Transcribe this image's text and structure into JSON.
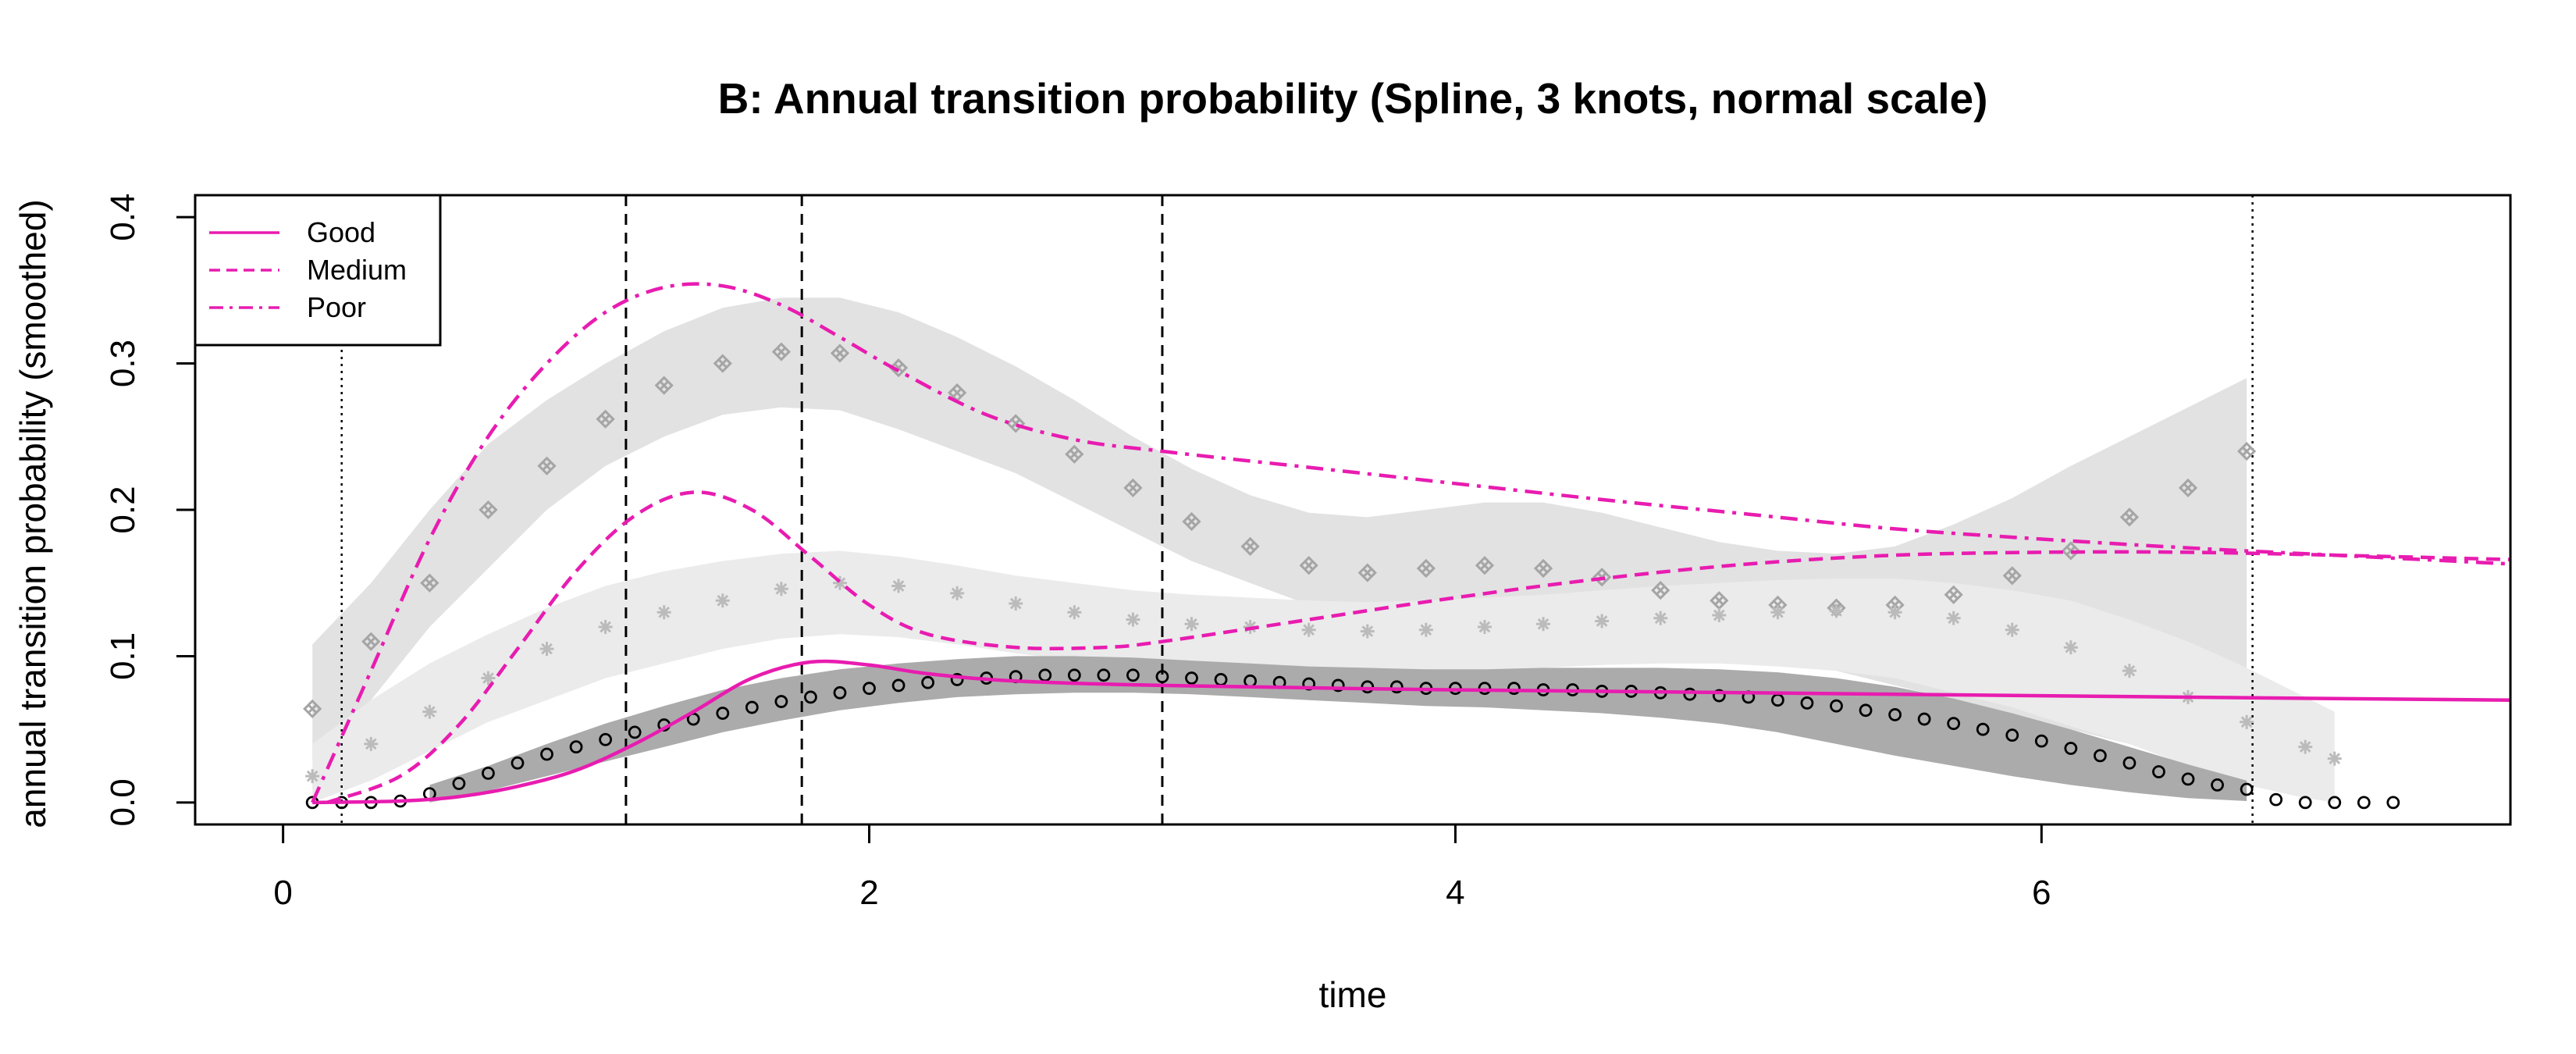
{
  "chart_data": {
    "type": "line",
    "title": "B: Annual transition probability (Spline, 3 knots, normal scale)",
    "xlabel": "time",
    "ylabel": "annual transition probability (smoothed)",
    "xlim": [
      -0.3,
      7.6
    ],
    "ylim": [
      -0.015,
      0.415
    ],
    "xticks": [
      0,
      2,
      4,
      6
    ],
    "xtick_labels": [
      "0",
      "2",
      "4",
      "6"
    ],
    "yticks": [
      0.0,
      0.1,
      0.2,
      0.3,
      0.4
    ],
    "ytick_labels": [
      "0.0",
      "0.1",
      "0.2",
      "0.3",
      "0.4"
    ],
    "grid": false,
    "legend_position": "top-left",
    "vlines_dashed": [
      1.17,
      1.77,
      3.0
    ],
    "vlines_dotted": [
      0.2,
      6.72
    ],
    "colors": {
      "model": "#E81CB0",
      "poor_obs": "#A5A5A5",
      "medium_obs": "#BBBBBB",
      "good_obs": "#000000",
      "band_poor": "#E2E2E2",
      "band_medium": "#EBEBEB",
      "band_good": "#ABABAB"
    },
    "series": [
      {
        "name": "Good",
        "line": "solid",
        "x": [
          0.1,
          0.4,
          0.6,
          0.8,
          1.0,
          1.2,
          1.4,
          1.6,
          1.8,
          2.0,
          2.2,
          2.5,
          3.0,
          4.0,
          5.0,
          6.0,
          7.0,
          7.6
        ],
        "y": [
          0.0,
          0.001,
          0.004,
          0.011,
          0.022,
          0.04,
          0.062,
          0.085,
          0.096,
          0.094,
          0.088,
          0.083,
          0.08,
          0.077,
          0.075,
          0.073,
          0.071,
          0.07
        ]
      },
      {
        "name": "Medium",
        "line": "dashed",
        "x": [
          0.15,
          0.4,
          0.6,
          0.8,
          1.0,
          1.2,
          1.4,
          1.6,
          1.8,
          2.0,
          2.2,
          2.5,
          2.8,
          3.0,
          3.5,
          4.0,
          4.5,
          5.0,
          5.5,
          6.0,
          6.5,
          7.0,
          7.6
        ],
        "y": [
          0.0,
          0.018,
          0.053,
          0.105,
          0.158,
          0.196,
          0.212,
          0.2,
          0.168,
          0.135,
          0.115,
          0.106,
          0.106,
          0.11,
          0.125,
          0.14,
          0.153,
          0.163,
          0.169,
          0.171,
          0.171,
          0.169,
          0.166
        ]
      },
      {
        "name": "Poor",
        "line": "dashdot",
        "x": [
          0.1,
          0.3,
          0.5,
          0.7,
          0.9,
          1.1,
          1.3,
          1.5,
          1.7,
          1.9,
          2.1,
          2.4,
          2.7,
          3.0,
          3.5,
          4.0,
          4.5,
          5.0,
          5.5,
          6.0,
          6.5,
          7.0,
          7.6
        ],
        "y": [
          0.0,
          0.09,
          0.18,
          0.25,
          0.3,
          0.335,
          0.352,
          0.353,
          0.34,
          0.318,
          0.295,
          0.265,
          0.248,
          0.24,
          0.229,
          0.218,
          0.207,
          0.197,
          0.187,
          0.18,
          0.174,
          0.169,
          0.163
        ]
      }
    ],
    "observed": [
      {
        "group": "Poor",
        "marker": "crossed-diamond",
        "x": [
          0.1,
          0.3,
          0.5,
          0.7,
          0.9,
          1.1,
          1.3,
          1.5,
          1.7,
          1.9,
          2.1,
          2.3,
          2.5,
          2.7,
          2.9,
          3.1,
          3.3,
          3.5,
          3.7,
          3.9,
          4.1,
          4.3,
          4.5,
          4.7,
          4.9,
          5.1,
          5.3,
          5.5,
          5.7,
          5.9,
          6.1,
          6.3,
          6.5,
          6.7
        ],
        "y": [
          0.064,
          0.11,
          0.15,
          0.2,
          0.23,
          0.262,
          0.285,
          0.3,
          0.308,
          0.307,
          0.297,
          0.28,
          0.259,
          0.238,
          0.215,
          0.192,
          0.175,
          0.162,
          0.157,
          0.16,
          0.162,
          0.16,
          0.154,
          0.145,
          0.138,
          0.135,
          0.133,
          0.135,
          0.142,
          0.155,
          0.172,
          0.195,
          0.215,
          0.24
        ]
      },
      {
        "group": "Medium",
        "marker": "asterisk",
        "x": [
          0.1,
          0.3,
          0.5,
          0.7,
          0.9,
          1.1,
          1.3,
          1.5,
          1.7,
          1.9,
          2.1,
          2.3,
          2.5,
          2.7,
          2.9,
          3.1,
          3.3,
          3.5,
          3.7,
          3.9,
          4.1,
          4.3,
          4.5,
          4.7,
          4.9,
          5.1,
          5.3,
          5.5,
          5.7,
          5.9,
          6.1,
          6.3,
          6.5,
          6.7,
          6.9,
          7.0
        ],
        "y": [
          0.018,
          0.04,
          0.062,
          0.085,
          0.105,
          0.12,
          0.13,
          0.138,
          0.146,
          0.15,
          0.148,
          0.143,
          0.136,
          0.13,
          0.125,
          0.122,
          0.12,
          0.118,
          0.117,
          0.118,
          0.12,
          0.122,
          0.124,
          0.126,
          0.128,
          0.13,
          0.131,
          0.13,
          0.126,
          0.118,
          0.106,
          0.09,
          0.072,
          0.055,
          0.038,
          0.03
        ]
      },
      {
        "group": "Good",
        "marker": "circle",
        "x": [
          0.1,
          0.2,
          0.3,
          0.4,
          0.5,
          0.6,
          0.7,
          0.8,
          0.9,
          1.0,
          1.1,
          1.2,
          1.3,
          1.4,
          1.5,
          1.6,
          1.7,
          1.8,
          1.9,
          2.0,
          2.1,
          2.2,
          2.3,
          2.4,
          2.5,
          2.6,
          2.7,
          2.8,
          2.9,
          3.0,
          3.1,
          3.2,
          3.3,
          3.4,
          3.5,
          3.6,
          3.7,
          3.8,
          3.9,
          4.0,
          4.1,
          4.2,
          4.3,
          4.4,
          4.5,
          4.6,
          4.7,
          4.8,
          4.9,
          5.0,
          5.1,
          5.2,
          5.3,
          5.4,
          5.5,
          5.6,
          5.7,
          5.8,
          5.9,
          6.0,
          6.1,
          6.2,
          6.3,
          6.4,
          6.5,
          6.6,
          6.7,
          6.8,
          6.9,
          7.0,
          7.1,
          7.2
        ],
        "y": [
          0.0,
          0.0,
          0.0,
          0.001,
          0.006,
          0.013,
          0.02,
          0.027,
          0.033,
          0.038,
          0.043,
          0.048,
          0.053,
          0.057,
          0.061,
          0.065,
          0.069,
          0.072,
          0.075,
          0.078,
          0.08,
          0.082,
          0.084,
          0.085,
          0.086,
          0.087,
          0.087,
          0.087,
          0.087,
          0.086,
          0.085,
          0.084,
          0.083,
          0.082,
          0.081,
          0.08,
          0.079,
          0.079,
          0.078,
          0.078,
          0.078,
          0.078,
          0.077,
          0.077,
          0.076,
          0.076,
          0.075,
          0.074,
          0.073,
          0.072,
          0.07,
          0.068,
          0.066,
          0.063,
          0.06,
          0.057,
          0.054,
          0.05,
          0.046,
          0.042,
          0.037,
          0.032,
          0.027,
          0.021,
          0.016,
          0.012,
          0.009,
          0.002,
          0.0,
          0.0,
          0.0,
          0.0
        ]
      }
    ],
    "bands": [
      {
        "group": "Poor",
        "x": [
          0.1,
          0.3,
          0.5,
          0.7,
          0.9,
          1.1,
          1.3,
          1.5,
          1.7,
          1.9,
          2.1,
          2.3,
          2.5,
          2.7,
          2.9,
          3.1,
          3.3,
          3.5,
          3.7,
          3.9,
          4.1,
          4.3,
          4.5,
          4.7,
          4.9,
          5.1,
          5.3,
          5.5,
          5.7,
          5.9,
          6.1,
          6.3,
          6.5,
          6.7
        ],
        "lower": [
          0.03,
          0.07,
          0.12,
          0.16,
          0.2,
          0.23,
          0.25,
          0.265,
          0.27,
          0.268,
          0.255,
          0.24,
          0.225,
          0.205,
          0.185,
          0.165,
          0.15,
          0.135,
          0.125,
          0.12,
          0.118,
          0.115,
          0.11,
          0.103,
          0.098,
          0.095,
          0.09,
          0.08,
          0.07,
          0.06,
          0.05,
          0.04,
          0.03,
          0.02
        ],
        "upper": [
          0.108,
          0.15,
          0.2,
          0.245,
          0.275,
          0.3,
          0.322,
          0.338,
          0.345,
          0.345,
          0.335,
          0.318,
          0.298,
          0.275,
          0.25,
          0.228,
          0.21,
          0.198,
          0.195,
          0.2,
          0.205,
          0.205,
          0.198,
          0.188,
          0.178,
          0.172,
          0.17,
          0.175,
          0.19,
          0.208,
          0.23,
          0.25,
          0.27,
          0.29
        ]
      },
      {
        "group": "Medium",
        "x": [
          0.1,
          0.3,
          0.5,
          0.7,
          0.9,
          1.1,
          1.3,
          1.5,
          1.7,
          1.9,
          2.1,
          2.3,
          2.5,
          2.7,
          2.9,
          3.1,
          3.3,
          3.5,
          3.7,
          3.9,
          4.1,
          4.3,
          4.5,
          4.7,
          4.9,
          5.1,
          5.3,
          5.5,
          5.7,
          5.9,
          6.1,
          6.3,
          6.5,
          6.7,
          6.9,
          7.0
        ],
        "lower": [
          0.0,
          0.015,
          0.035,
          0.055,
          0.07,
          0.085,
          0.095,
          0.105,
          0.112,
          0.115,
          0.113,
          0.108,
          0.102,
          0.097,
          0.094,
          0.092,
          0.09,
          0.088,
          0.087,
          0.088,
          0.09,
          0.092,
          0.094,
          0.095,
          0.095,
          0.093,
          0.09,
          0.085,
          0.075,
          0.065,
          0.052,
          0.04,
          0.025,
          0.012,
          0.003,
          0.0
        ],
        "upper": [
          0.04,
          0.07,
          0.095,
          0.115,
          0.133,
          0.148,
          0.158,
          0.165,
          0.17,
          0.172,
          0.168,
          0.162,
          0.155,
          0.15,
          0.145,
          0.142,
          0.14,
          0.138,
          0.137,
          0.138,
          0.14,
          0.142,
          0.145,
          0.148,
          0.15,
          0.152,
          0.153,
          0.153,
          0.15,
          0.145,
          0.138,
          0.125,
          0.11,
          0.092,
          0.072,
          0.062
        ]
      },
      {
        "group": "Good",
        "x": [
          0.5,
          0.7,
          0.9,
          1.1,
          1.3,
          1.5,
          1.7,
          1.9,
          2.1,
          2.3,
          2.5,
          2.7,
          2.9,
          3.1,
          3.3,
          3.5,
          3.7,
          3.9,
          4.1,
          4.3,
          4.5,
          4.7,
          4.9,
          5.1,
          5.3,
          5.5,
          5.7,
          5.9,
          6.1,
          6.3,
          6.5,
          6.7
        ],
        "lower": [
          0.0,
          0.008,
          0.018,
          0.028,
          0.038,
          0.048,
          0.056,
          0.063,
          0.068,
          0.072,
          0.074,
          0.075,
          0.075,
          0.074,
          0.072,
          0.07,
          0.068,
          0.066,
          0.065,
          0.063,
          0.061,
          0.058,
          0.054,
          0.048,
          0.04,
          0.032,
          0.025,
          0.018,
          0.012,
          0.007,
          0.003,
          0.001
        ],
        "upper": [
          0.012,
          0.025,
          0.04,
          0.054,
          0.066,
          0.077,
          0.085,
          0.091,
          0.095,
          0.098,
          0.1,
          0.1,
          0.099,
          0.097,
          0.095,
          0.093,
          0.092,
          0.091,
          0.091,
          0.092,
          0.092,
          0.092,
          0.091,
          0.089,
          0.085,
          0.079,
          0.071,
          0.061,
          0.05,
          0.038,
          0.026,
          0.015
        ]
      }
    ]
  }
}
